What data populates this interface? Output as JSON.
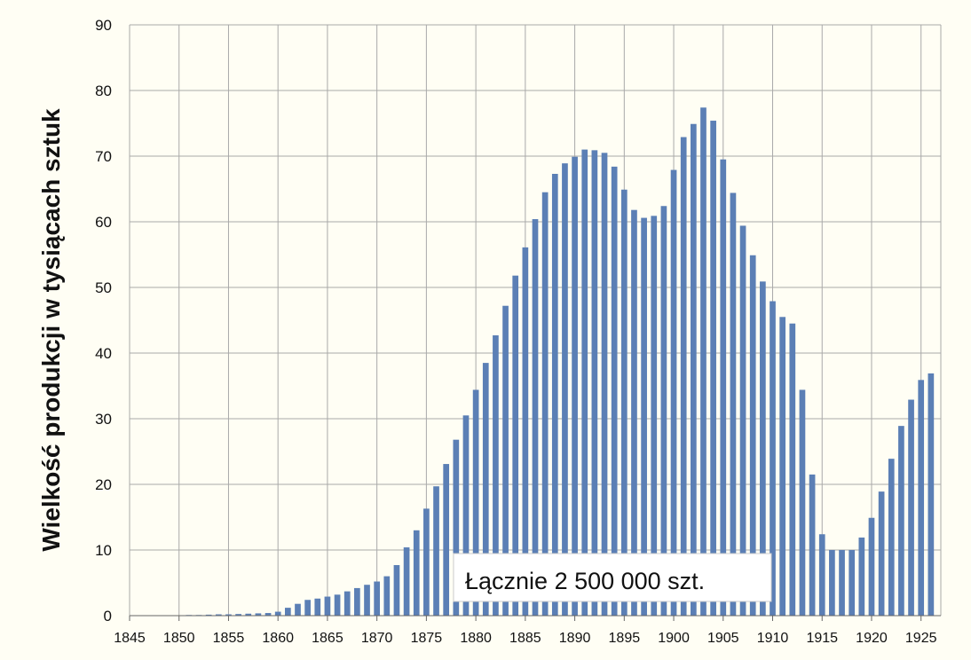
{
  "chart_data": {
    "type": "bar",
    "ylabel": "Wielkość produkcji w tysiącach sztuk",
    "xlabel": "",
    "ylim": [
      0,
      90
    ],
    "y_ticks": [
      0,
      10,
      20,
      30,
      40,
      50,
      60,
      70,
      80,
      90
    ],
    "x_range": [
      1845,
      1927
    ],
    "x_ticks": [
      1845,
      1850,
      1855,
      1860,
      1865,
      1870,
      1875,
      1880,
      1885,
      1890,
      1895,
      1900,
      1905,
      1910,
      1915,
      1920,
      1925
    ],
    "grid": true,
    "bar_color": "#5b7fb5",
    "grid_color": "#a9a9a9",
    "background": "#fffef4",
    "annotation": "Łącznie 2 500 000 szt.",
    "x": [
      1851,
      1852,
      1853,
      1854,
      1855,
      1856,
      1857,
      1858,
      1859,
      1860,
      1861,
      1862,
      1863,
      1864,
      1865,
      1866,
      1867,
      1868,
      1869,
      1870,
      1871,
      1872,
      1873,
      1874,
      1875,
      1876,
      1877,
      1878,
      1879,
      1880,
      1881,
      1882,
      1883,
      1884,
      1885,
      1886,
      1887,
      1888,
      1889,
      1890,
      1891,
      1892,
      1893,
      1894,
      1895,
      1896,
      1897,
      1898,
      1899,
      1900,
      1901,
      1902,
      1903,
      1904,
      1905,
      1906,
      1907,
      1908,
      1909,
      1910,
      1911,
      1912,
      1913,
      1914,
      1915,
      1916,
      1917,
      1918,
      1919,
      1920,
      1921,
      1922,
      1923,
      1924,
      1925,
      1926
    ],
    "values": [
      0.1,
      0.1,
      0.15,
      0.2,
      0.2,
      0.25,
      0.3,
      0.35,
      0.4,
      0.6,
      1.2,
      1.8,
      2.4,
      2.6,
      2.9,
      3.2,
      3.7,
      4.2,
      4.7,
      5.2,
      6.0,
      7.7,
      10.4,
      13.0,
      16.3,
      19.7,
      23.1,
      26.8,
      30.5,
      34.4,
      38.5,
      42.7,
      47.2,
      51.8,
      56.1,
      60.4,
      64.5,
      67.3,
      68.9,
      69.9,
      71.0,
      70.9,
      70.5,
      68.4,
      64.9,
      61.8,
      60.6,
      60.9,
      62.4,
      67.9,
      72.9,
      74.9,
      77.4,
      75.4,
      69.5,
      64.4,
      59.4,
      54.9,
      50.9,
      47.9,
      45.5,
      44.5,
      34.4,
      21.5,
      12.4,
      10.0,
      10.0,
      10.0,
      11.9,
      14.9,
      18.9,
      23.9,
      28.9,
      32.9,
      35.9,
      36.9
    ]
  }
}
